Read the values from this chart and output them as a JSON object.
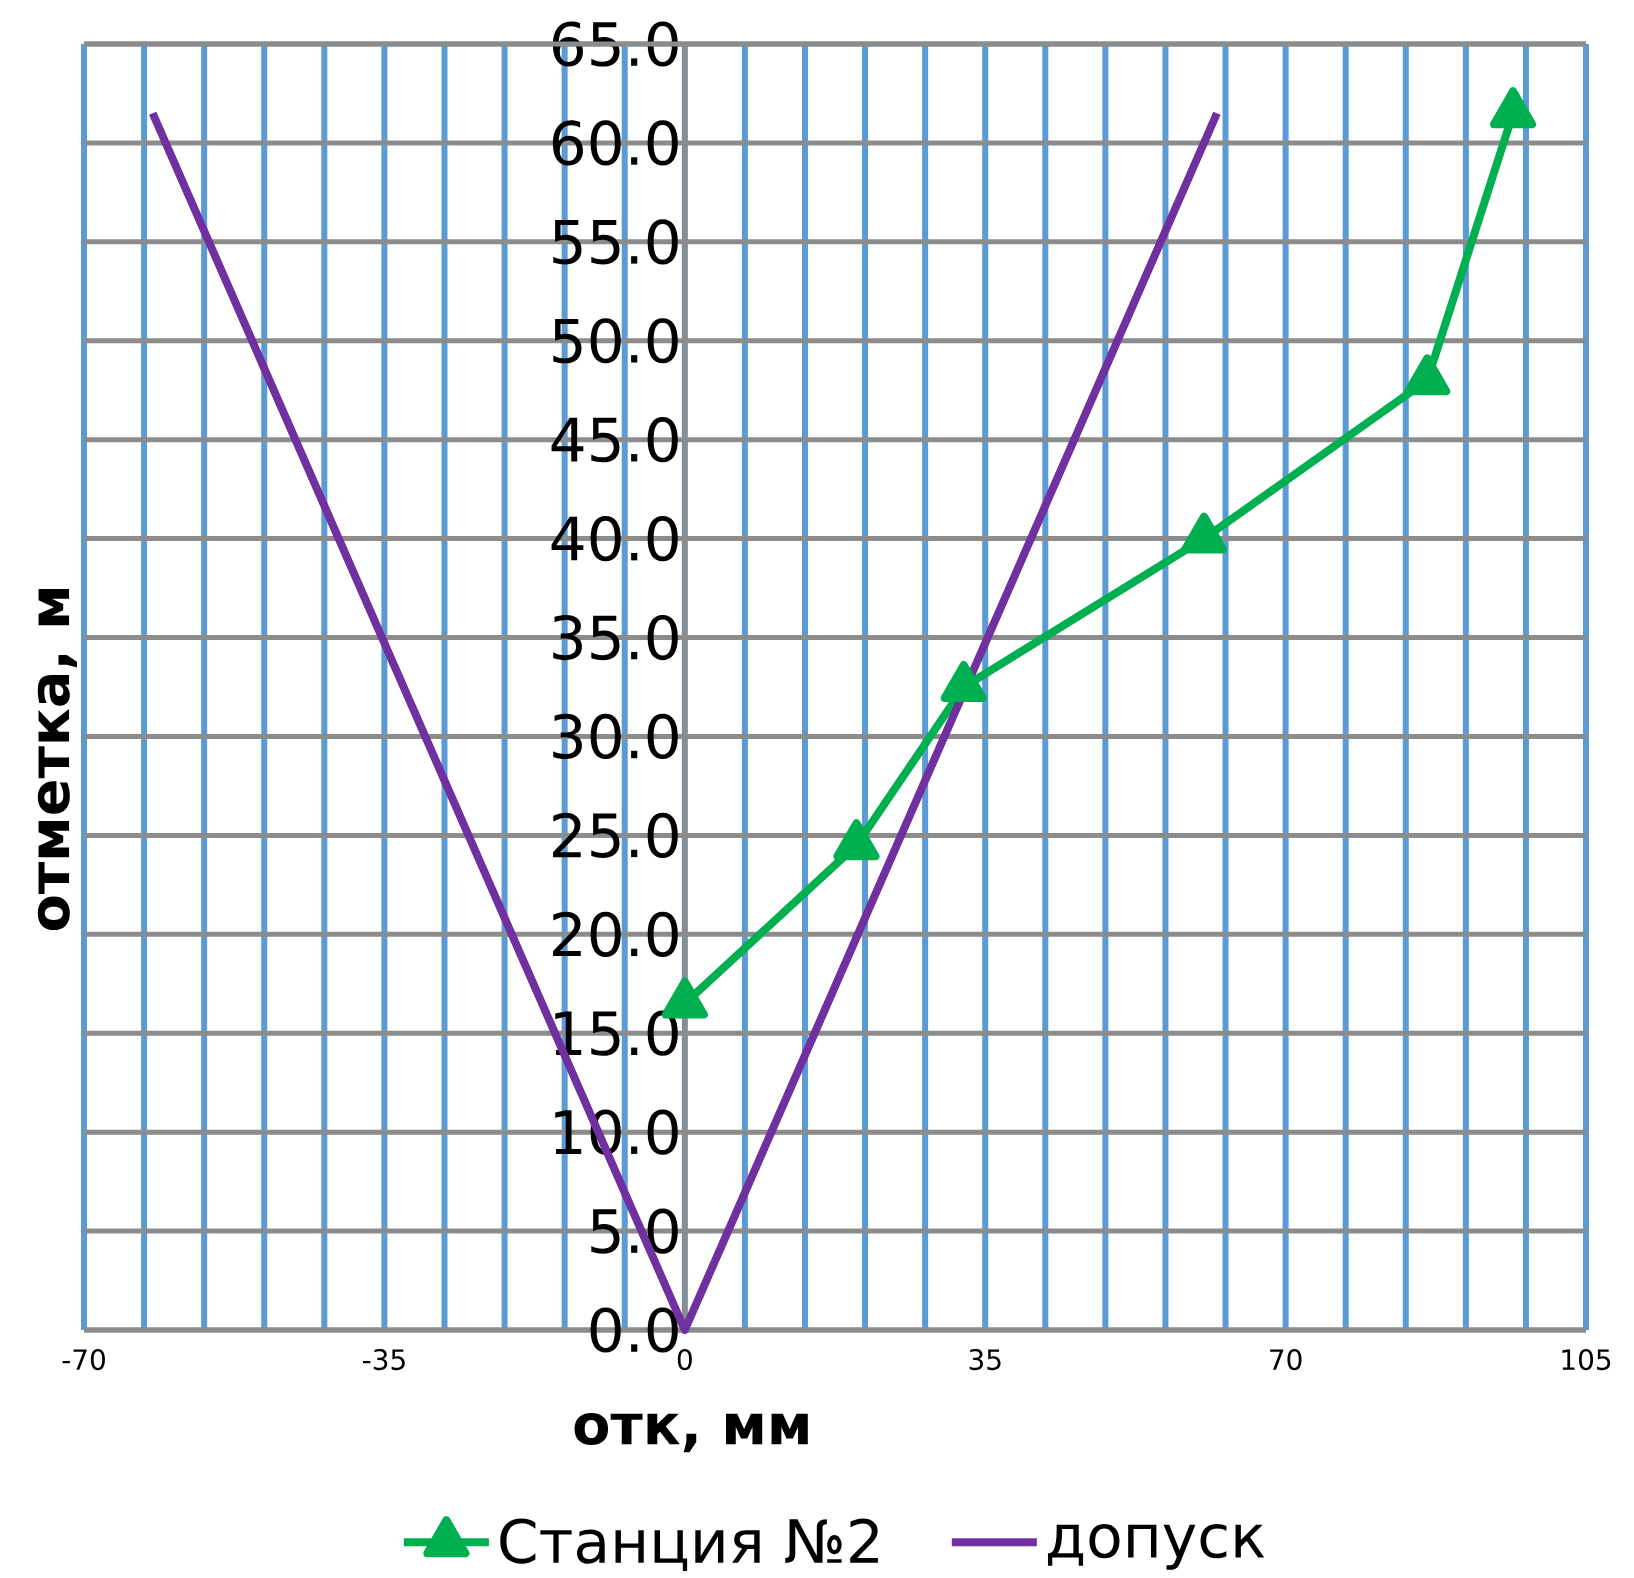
{
  "chart_data": {
    "type": "line",
    "xlabel": "отк, мм",
    "ylabel": "отметка, м",
    "xlim": [
      -70,
      105
    ],
    "ylim": [
      0,
      65
    ],
    "xticks": [
      -70,
      {
        "value": -63,
        "label": null
      },
      {
        "value": -56,
        "label": null
      },
      {
        "value": -49,
        "label": null
      },
      {
        "value": -42,
        "label": null
      },
      -35,
      {
        "value": -28,
        "label": null
      },
      {
        "value": -21,
        "label": null
      },
      {
        "value": -14,
        "label": null
      },
      {
        "value": -7,
        "label": null
      },
      0,
      {
        "value": 7,
        "label": null
      },
      {
        "value": 14,
        "label": null
      },
      {
        "value": 21,
        "label": null
      },
      {
        "value": 28,
        "label": null
      },
      35,
      {
        "value": 42,
        "label": null
      },
      {
        "value": 49,
        "label": null
      },
      {
        "value": 56,
        "label": null
      },
      {
        "value": 63,
        "label": null
      },
      70,
      {
        "value": 77,
        "label": null
      },
      {
        "value": 84,
        "label": null
      },
      {
        "value": 91,
        "label": null
      },
      {
        "value": 98,
        "label": null
      },
      105
    ],
    "yticks": [
      {
        "value": 0,
        "label": "0.0"
      },
      {
        "value": 5,
        "label": "5.0"
      },
      {
        "value": 10,
        "label": "10.0"
      },
      {
        "value": 15,
        "label": "15.0"
      },
      {
        "value": 20,
        "label": "20.0"
      },
      {
        "value": 25,
        "label": "25.0"
      },
      {
        "value": 30,
        "label": "30.0"
      },
      {
        "value": 35,
        "label": "35.0"
      },
      {
        "value": 40,
        "label": "40.0"
      },
      {
        "value": 45,
        "label": "45.0"
      },
      {
        "value": 50,
        "label": "50.0"
      },
      {
        "value": 55,
        "label": "55.0"
      },
      {
        "value": 60,
        "label": "60.0"
      },
      {
        "value": 65,
        "label": "65.0"
      }
    ],
    "grid": true,
    "legend": "bottom",
    "line_style": "solid",
    "series": [
      {
        "name": "Станция №2",
        "color": "#00b050",
        "marker": "triangle",
        "x": [
          0,
          20,
          32.5,
          60.5,
          86.5,
          96.5
        ],
        "values": [
          16.5,
          24.5,
          32.5,
          40,
          48,
          61.5
        ]
      },
      {
        "name": "допуск",
        "color": "#7030a0",
        "marker": "none",
        "x": [
          -62,
          0,
          62
        ],
        "values": [
          61.5,
          0,
          61.5
        ]
      }
    ]
  }
}
